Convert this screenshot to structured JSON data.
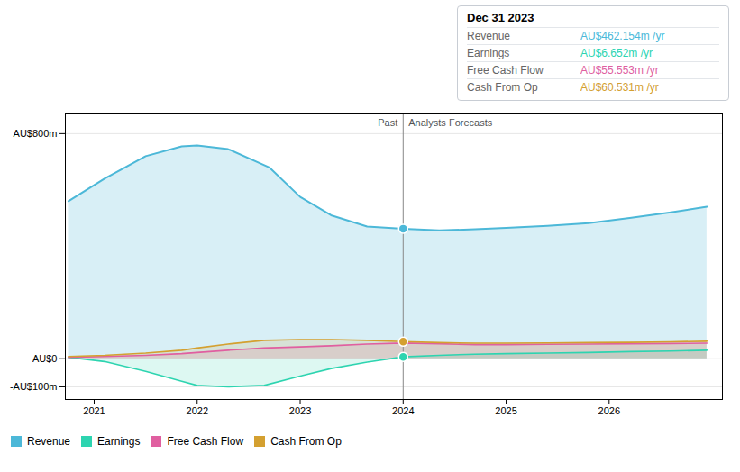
{
  "chart_data": {
    "type": "area",
    "series": [
      {
        "name": "Revenue",
        "color": "#4cb8d8",
        "x": [
          2020.75,
          2021.1,
          2021.5,
          2021.85,
          2022.0,
          2022.3,
          2022.7,
          2023.0,
          2023.3,
          2023.65,
          2024.0,
          2024.35,
          2024.7,
          2025.0,
          2025.4,
          2025.8,
          2026.2,
          2026.6,
          2026.95
        ],
        "values": [
          560,
          640,
          720,
          755,
          758,
          745,
          680,
          575,
          510,
          470,
          462,
          456,
          460,
          465,
          472,
          482,
          500,
          520,
          540
        ]
      },
      {
        "name": "Earnings",
        "color": "#2dd4b0",
        "x": [
          2020.75,
          2021.1,
          2021.5,
          2021.85,
          2022.0,
          2022.3,
          2022.65,
          2023.0,
          2023.3,
          2023.65,
          2024.0,
          2024.35,
          2024.7,
          2025.0,
          2025.4,
          2025.8,
          2026.2,
          2026.6,
          2026.95
        ],
        "values": [
          5,
          -10,
          -45,
          -80,
          -95,
          -100,
          -95,
          -62,
          -35,
          -12,
          6.652,
          12,
          16,
          18,
          20,
          22,
          25,
          27,
          30
        ]
      },
      {
        "name": "Free Cash Flow",
        "color": "#e05fa0",
        "x": [
          2020.75,
          2021.1,
          2021.5,
          2021.85,
          2022.0,
          2022.3,
          2022.65,
          2023.0,
          2023.3,
          2023.65,
          2024.0,
          2024.35,
          2024.7,
          2025.0,
          2025.4,
          2025.8,
          2026.2,
          2026.6,
          2026.95
        ],
        "values": [
          5,
          8,
          12,
          18,
          22,
          30,
          38,
          42,
          46,
          52,
          55.553,
          53,
          50,
          50,
          51,
          52,
          53,
          54,
          55
        ]
      },
      {
        "name": "Cash From Op",
        "color": "#d4a030",
        "x": [
          2020.75,
          2021.1,
          2021.5,
          2021.85,
          2022.0,
          2022.3,
          2022.65,
          2023.0,
          2023.3,
          2023.65,
          2024.0,
          2024.35,
          2024.7,
          2025.0,
          2025.4,
          2025.8,
          2026.2,
          2026.6,
          2026.95
        ],
        "values": [
          8,
          12,
          20,
          30,
          38,
          52,
          65,
          68,
          68,
          65,
          60.531,
          57,
          55,
          55,
          56,
          57,
          58,
          60,
          62
        ]
      }
    ],
    "xlim": [
      2020.72,
      2027.1
    ],
    "xticks": [
      2021,
      2022,
      2023,
      2024,
      2025,
      2026
    ],
    "ylim": [
      -145,
      870
    ],
    "yticks": [
      {
        "value": 800,
        "label": "AU$800m"
      },
      {
        "value": 0,
        "label": "AU$0"
      },
      {
        "value": -100,
        "label": "-AU$100m"
      }
    ],
    "grid": true,
    "legend": "bottom-left",
    "divider": {
      "x": 2024.0,
      "labels": [
        "Past",
        "Analysts Forecasts"
      ]
    },
    "highlight": {
      "x": 2024.0,
      "points": [
        {
          "series": "Revenue",
          "value": 462.154
        },
        {
          "series": "Earnings",
          "value": 6.652
        },
        {
          "series": "Cash From Op",
          "value": 60.531
        }
      ]
    },
    "tooltip": {
      "title": "Dec 31 2023",
      "rows": [
        {
          "label": "Revenue",
          "value": 462.154,
          "value_label": "AU$462.154m /yr",
          "color": "#4cb8d8"
        },
        {
          "label": "Earnings",
          "value": 6.652,
          "value_label": "AU$6.652m /yr",
          "color": "#2dd4b0"
        },
        {
          "label": "Free Cash Flow",
          "value": 55.553,
          "value_label": "AU$55.553m /yr",
          "color": "#e05fa0"
        },
        {
          "label": "Cash From Op",
          "value": 60.531,
          "value_label": "AU$60.531m /yr",
          "color": "#d4a030"
        }
      ]
    }
  }
}
